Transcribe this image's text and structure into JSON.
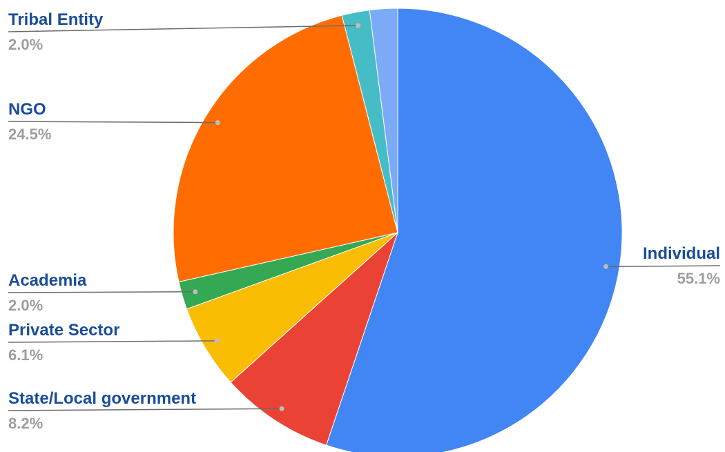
{
  "chart_data": {
    "type": "pie",
    "title": "",
    "slices": [
      {
        "label": "Individual",
        "percent_label": "55.1%",
        "value": 55.1,
        "color": "#4285f4"
      },
      {
        "label": "State/Local government",
        "percent_label": "8.2%",
        "value": 8.2,
        "color": "#ea4335"
      },
      {
        "label": "Private Sector",
        "percent_label": "6.1%",
        "value": 6.1,
        "color": "#fbbc04"
      },
      {
        "label": "Academia",
        "percent_label": "2.0%",
        "value": 2.0,
        "color": "#34a853"
      },
      {
        "label": "NGO",
        "percent_label": "24.5%",
        "value": 24.5,
        "color": "#ff6d01"
      },
      {
        "label": "Tribal Entity",
        "percent_label": "2.0%",
        "value": 2.0,
        "color": "#46bdc6"
      },
      {
        "label": "",
        "percent_label": "",
        "value": 2.0,
        "color": "#7baaf7"
      }
    ],
    "legend": "none"
  }
}
